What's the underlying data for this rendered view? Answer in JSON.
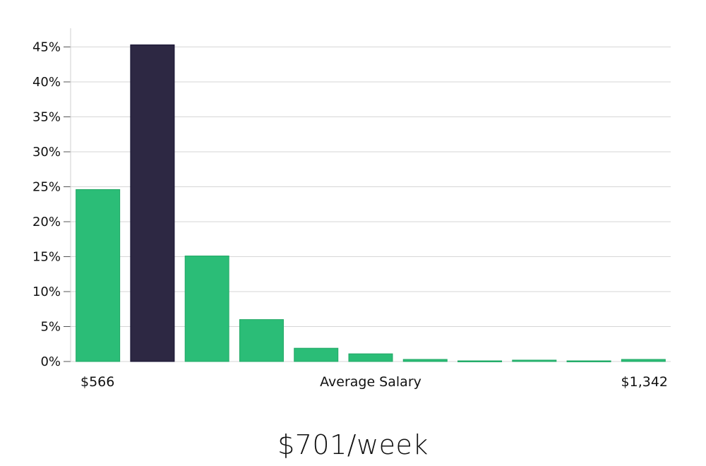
{
  "chart_data": {
    "type": "bar",
    "title": "",
    "xlabel": "Average Salary",
    "ylabel": "",
    "x_range_labels": {
      "min": "$566",
      "max": "$1,342"
    },
    "ylim": [
      0,
      47
    ],
    "yticks": [
      0,
      5,
      10,
      15,
      20,
      25,
      30,
      35,
      40,
      45
    ],
    "ytick_labels": [
      "0%",
      "5%",
      "10%",
      "15%",
      "20%",
      "25%",
      "30%",
      "35%",
      "40%",
      "45%"
    ],
    "grid": true,
    "values": [
      24.6,
      45.3,
      15.1,
      6.0,
      1.9,
      1.1,
      0.3,
      0.1,
      0.2,
      0.1,
      0.3
    ],
    "highlight_index": 1,
    "colors": {
      "bar": "#2bbd77",
      "highlight": "#29243f",
      "grid": "#d6d6d6",
      "axis": "#cfcfcf"
    }
  },
  "headline": "$701/week"
}
